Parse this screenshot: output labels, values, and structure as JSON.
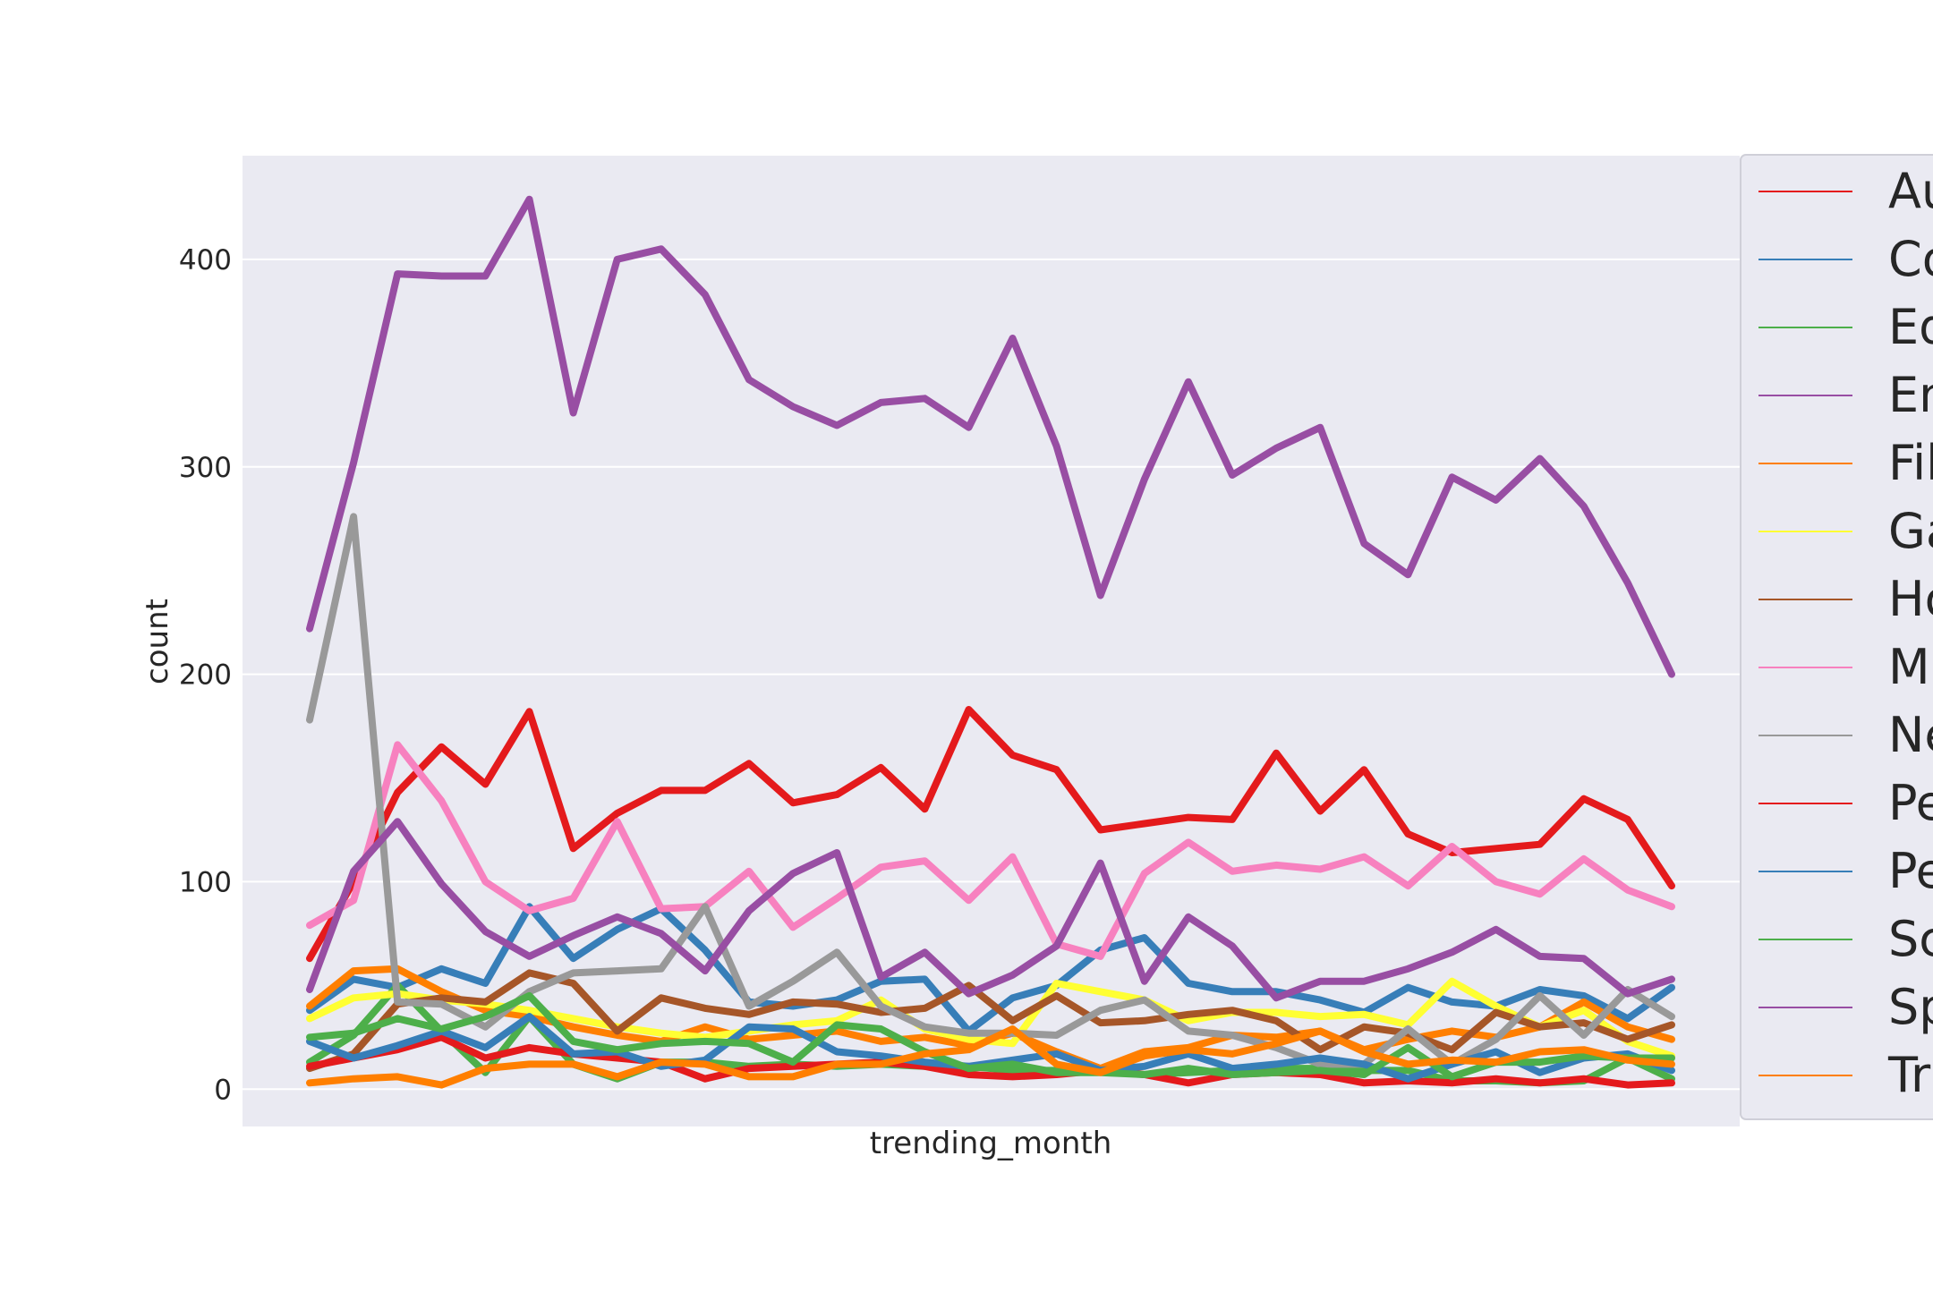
{
  "chart_data": {
    "type": "line",
    "title": "",
    "xlabel": "trending_month",
    "ylabel": "count",
    "ylim": [
      -18,
      450
    ],
    "yticks": [
      0,
      100,
      200,
      300,
      400
    ],
    "grid": true,
    "legend_position": "right",
    "x": [
      1,
      2,
      3,
      4,
      5,
      6,
      7,
      8,
      9,
      10,
      11,
      12,
      13,
      14,
      15,
      16,
      17,
      18,
      19,
      20,
      21,
      22,
      23,
      24,
      25,
      26,
      27,
      28,
      29,
      30,
      31,
      32
    ],
    "series": [
      {
        "name": "Au",
        "color": "#e41a1c",
        "values": [
          63,
          100,
          143,
          165,
          147,
          182,
          116,
          133,
          144,
          144,
          157,
          138,
          142,
          155,
          135,
          183,
          161,
          154,
          125,
          128,
          131,
          130,
          162,
          134,
          154,
          123,
          114,
          116,
          118,
          140,
          130,
          98
        ]
      },
      {
        "name": "Co",
        "color": "#377eb8",
        "values": [
          38,
          53,
          49,
          58,
          51,
          88,
          63,
          77,
          87,
          67,
          42,
          40,
          43,
          52,
          53,
          28,
          44,
          50,
          67,
          73,
          51,
          47,
          47,
          43,
          37,
          49,
          42,
          40,
          48,
          45,
          34,
          49
        ]
      },
      {
        "name": "Ed",
        "color": "#4daf4a",
        "values": [
          13,
          26,
          50,
          28,
          8,
          35,
          12,
          5,
          13,
          13,
          11,
          12,
          11,
          12,
          11,
          11,
          9,
          9,
          10,
          7,
          8,
          9,
          10,
          10,
          9,
          9,
          4,
          4,
          3,
          4,
          15,
          5
        ]
      },
      {
        "name": "En",
        "color": "#984ea3",
        "values": [
          222,
          302,
          393,
          392,
          392,
          429,
          326,
          400,
          405,
          383,
          342,
          329,
          320,
          331,
          333,
          319,
          362,
          310,
          238,
          294,
          341,
          296,
          309,
          319,
          263,
          248,
          295,
          284,
          304,
          281,
          244,
          200
        ]
      },
      {
        "name": "Fil",
        "color": "#ff7f00",
        "values": [
          40,
          57,
          58,
          47,
          38,
          35,
          30,
          26,
          23,
          30,
          24,
          26,
          28,
          23,
          25,
          21,
          27,
          18,
          10,
          18,
          20,
          26,
          25,
          28,
          19,
          24,
          28,
          25,
          30,
          42,
          30,
          24
        ]
      },
      {
        "name": "Ga",
        "color": "#ffff33",
        "values": [
          34,
          44,
          46,
          43,
          41,
          38,
          34,
          30,
          27,
          25,
          28,
          31,
          33,
          43,
          29,
          24,
          22,
          51,
          47,
          43,
          33,
          37,
          37,
          35,
          36,
          31,
          52,
          40,
          30,
          38,
          23,
          16
        ]
      },
      {
        "name": "Ho",
        "color": "#a65628",
        "values": [
          10,
          17,
          41,
          44,
          42,
          56,
          51,
          28,
          44,
          39,
          36,
          42,
          41,
          37,
          39,
          50,
          33,
          45,
          32,
          33,
          36,
          38,
          33,
          19,
          30,
          27,
          19,
          37,
          30,
          32,
          24,
          31
        ]
      },
      {
        "name": "Mu",
        "color": "#f781bf",
        "values": [
          79,
          91,
          166,
          139,
          100,
          86,
          92,
          129,
          87,
          88,
          105,
          78,
          92,
          107,
          110,
          91,
          112,
          70,
          64,
          104,
          119,
          105,
          108,
          106,
          112,
          98,
          117,
          100,
          94,
          111,
          96,
          88
        ]
      },
      {
        "name": "Ne",
        "color": "#999999",
        "values": [
          178,
          276,
          42,
          41,
          30,
          47,
          56,
          57,
          58,
          88,
          40,
          52,
          66,
          40,
          30,
          27,
          27,
          26,
          38,
          43,
          28,
          26,
          20,
          12,
          12,
          29,
          12,
          24,
          45,
          26,
          48,
          35
        ]
      },
      {
        "name": "Pe",
        "color": "#e41a1c",
        "values": [
          11,
          15,
          19,
          25,
          15,
          20,
          17,
          15,
          13,
          5,
          10,
          11,
          12,
          13,
          11,
          7,
          6,
          7,
          9,
          7,
          3,
          7,
          8,
          7,
          3,
          4,
          3,
          5,
          3,
          5,
          2,
          3
        ]
      },
      {
        "name": "Pe",
        "color": "#377eb8",
        "values": [
          23,
          15,
          21,
          28,
          20,
          35,
          17,
          18,
          11,
          14,
          30,
          29,
          18,
          16,
          13,
          11,
          14,
          17,
          9,
          11,
          17,
          10,
          12,
          15,
          12,
          5,
          12,
          18,
          8,
          15,
          17,
          9
        ]
      },
      {
        "name": "Sc",
        "color": "#4daf4a",
        "values": [
          25,
          27,
          34,
          29,
          35,
          45,
          23,
          19,
          22,
          23,
          22,
          13,
          31,
          29,
          18,
          10,
          12,
          8,
          8,
          7,
          10,
          7,
          8,
          9,
          7,
          20,
          6,
          13,
          13,
          16,
          15,
          15
        ]
      },
      {
        "name": "Sp",
        "color": "#984ea3",
        "values": [
          48,
          105,
          129,
          99,
          76,
          64,
          74,
          83,
          75,
          57,
          86,
          104,
          114,
          54,
          66,
          46,
          55,
          69,
          109,
          52,
          83,
          69,
          44,
          52,
          52,
          58,
          66,
          77,
          64,
          63,
          46,
          53
        ]
      },
      {
        "name": "Tr",
        "color": "#ff7f00",
        "values": [
          3,
          5,
          6,
          2,
          10,
          12,
          12,
          6,
          13,
          12,
          6,
          6,
          12,
          12,
          17,
          19,
          29,
          12,
          8,
          16,
          19,
          17,
          22,
          28,
          18,
          12,
          14,
          13,
          18,
          19,
          14,
          12
        ]
      }
    ]
  }
}
